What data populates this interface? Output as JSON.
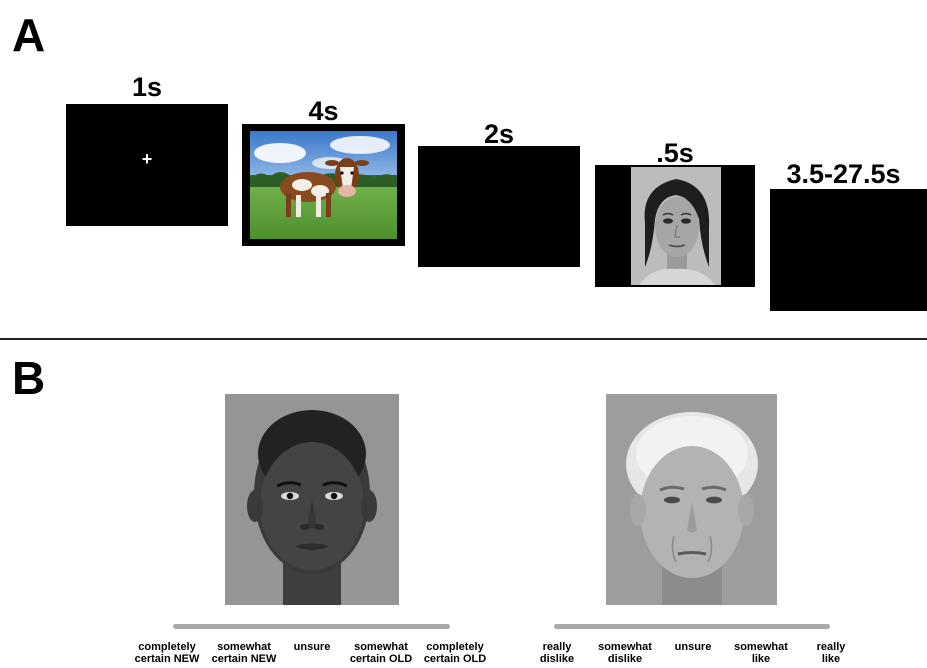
{
  "panel_a": {
    "letter": "A",
    "trial_timeline": [
      {
        "duration": "1s",
        "content": "fixation cross",
        "fixation_glyph": "+"
      },
      {
        "duration": "4s",
        "content": "cow photograph"
      },
      {
        "duration": "2s",
        "content": "blank screen"
      },
      {
        "duration": ".5s",
        "content": "face photograph"
      },
      {
        "duration": "3.5-27.5s",
        "content": "blank screen"
      }
    ]
  },
  "panel_b": {
    "letter": "B",
    "memory_scale": {
      "labels": [
        "completely\ncertain NEW",
        "somewhat\ncertain NEW",
        "unsure",
        "somewhat\ncertain OLD",
        "completely\ncertain OLD"
      ]
    },
    "liking_scale": {
      "labels": [
        "really\ndislike",
        "somewhat\ndislike",
        "unsure",
        "somewhat\nlike",
        "really\nlike"
      ]
    }
  },
  "colors": {
    "screen": "#000000",
    "scale_bar": "#a9a9a9",
    "portrait_background": "#9a9a9a"
  }
}
